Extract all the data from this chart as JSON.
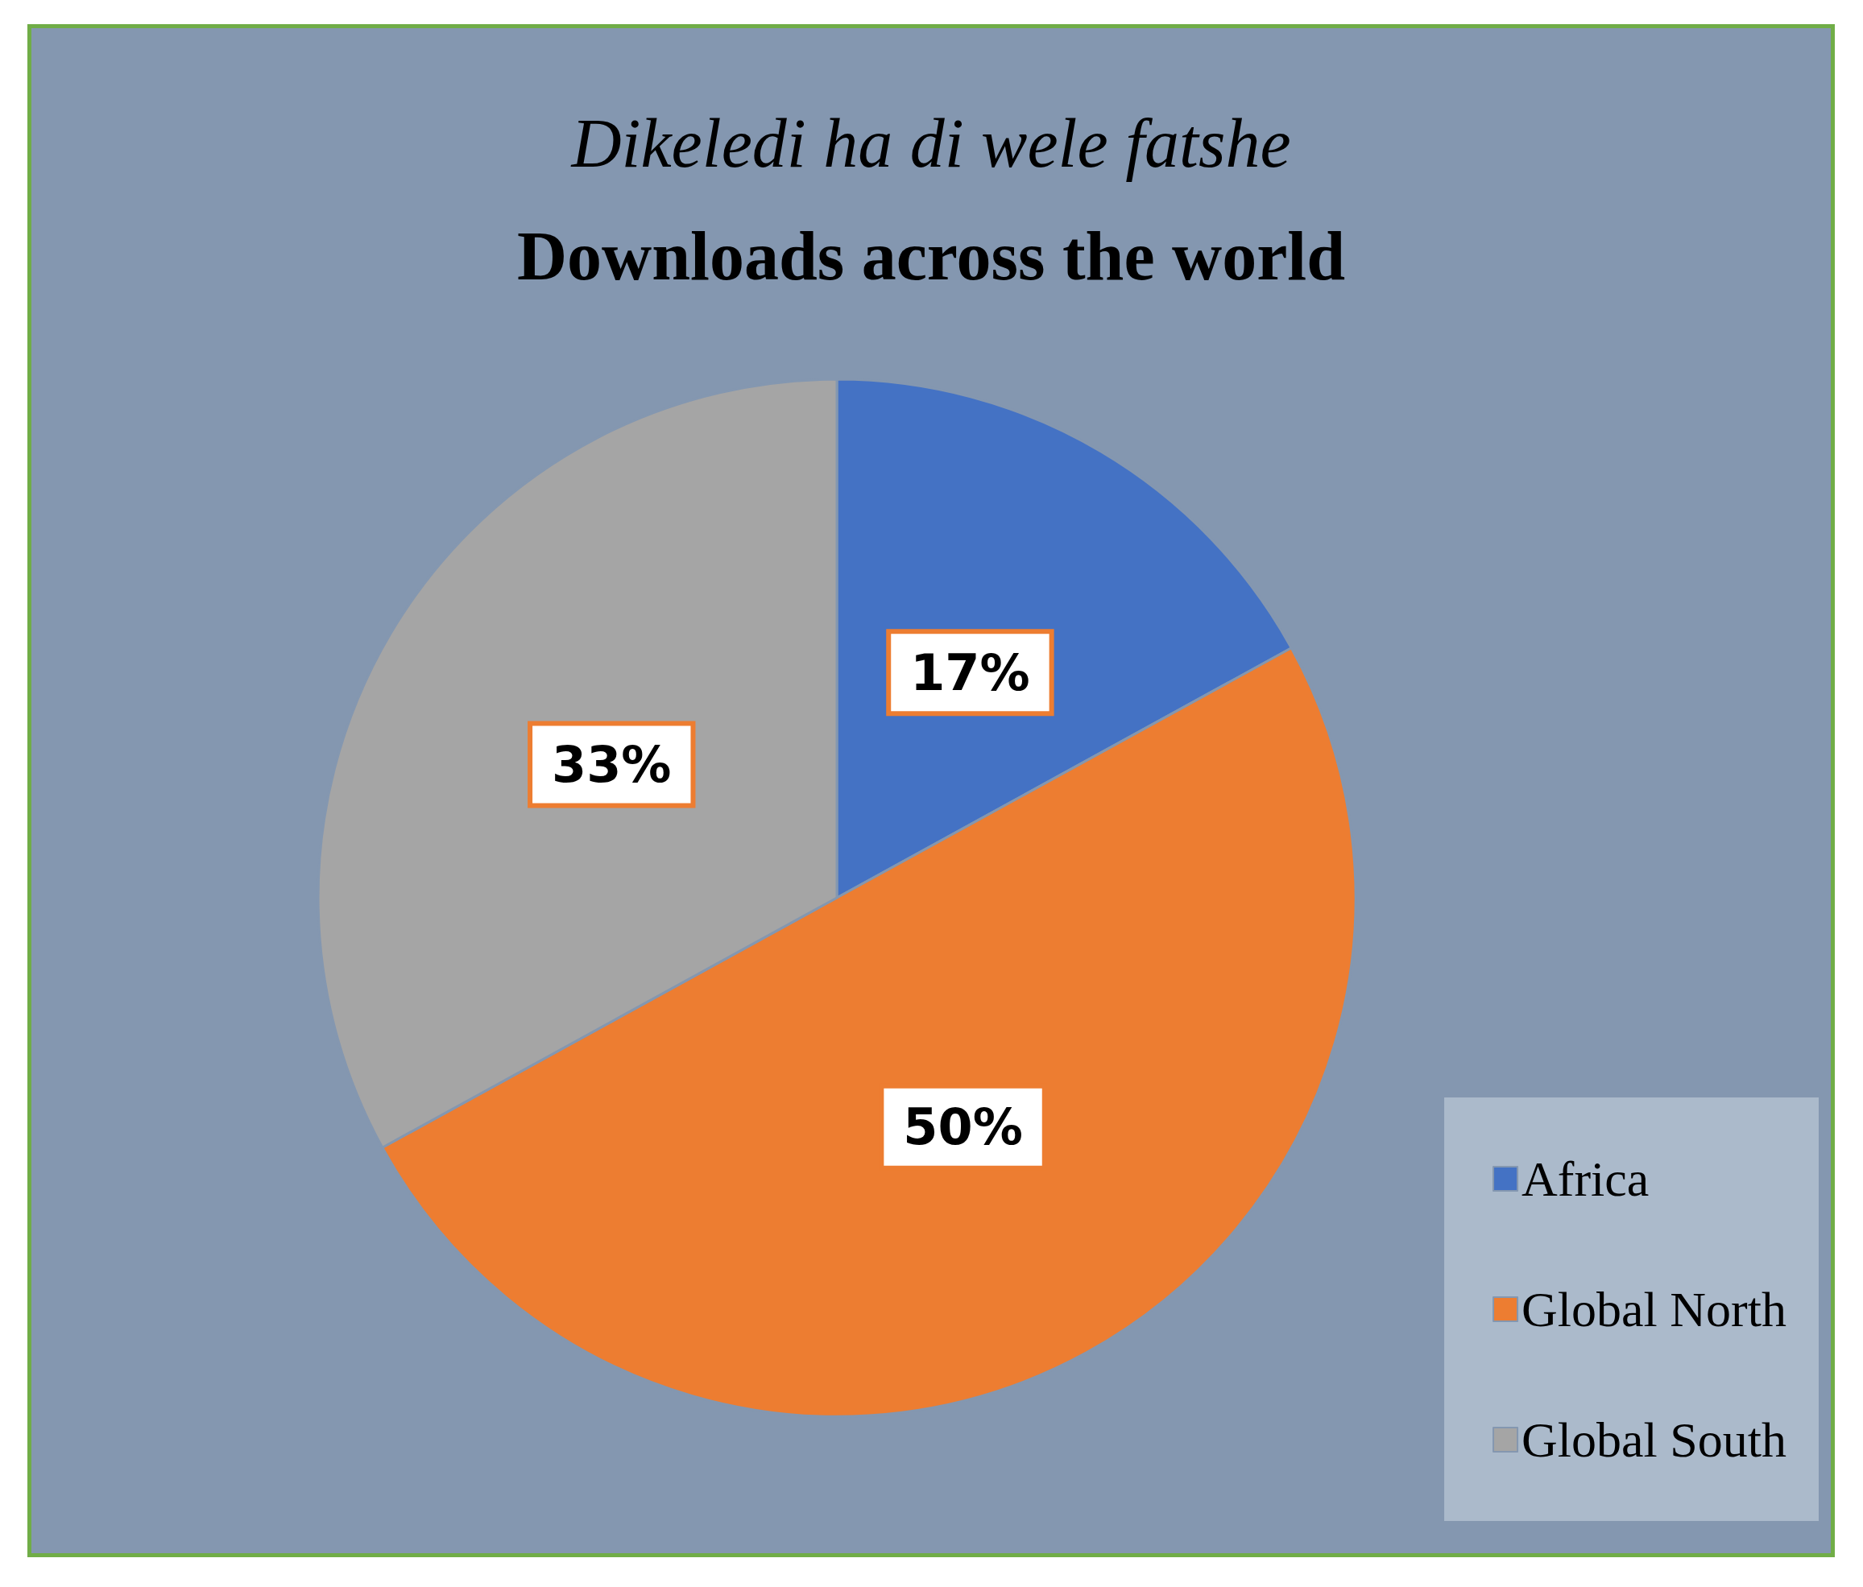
{
  "chart_data": {
    "type": "pie",
    "subtitle": "Dikeledi ha di wele fatshe",
    "title": "Downloads across the world",
    "categories": [
      "Africa",
      "Global North",
      "Global South"
    ],
    "values": [
      17,
      50,
      33
    ],
    "colors": [
      "#4472c4",
      "#ed7d31",
      "#a5a5a5"
    ],
    "value_labels": [
      "17%",
      "50%",
      "33%"
    ],
    "legend": "bottom right"
  }
}
